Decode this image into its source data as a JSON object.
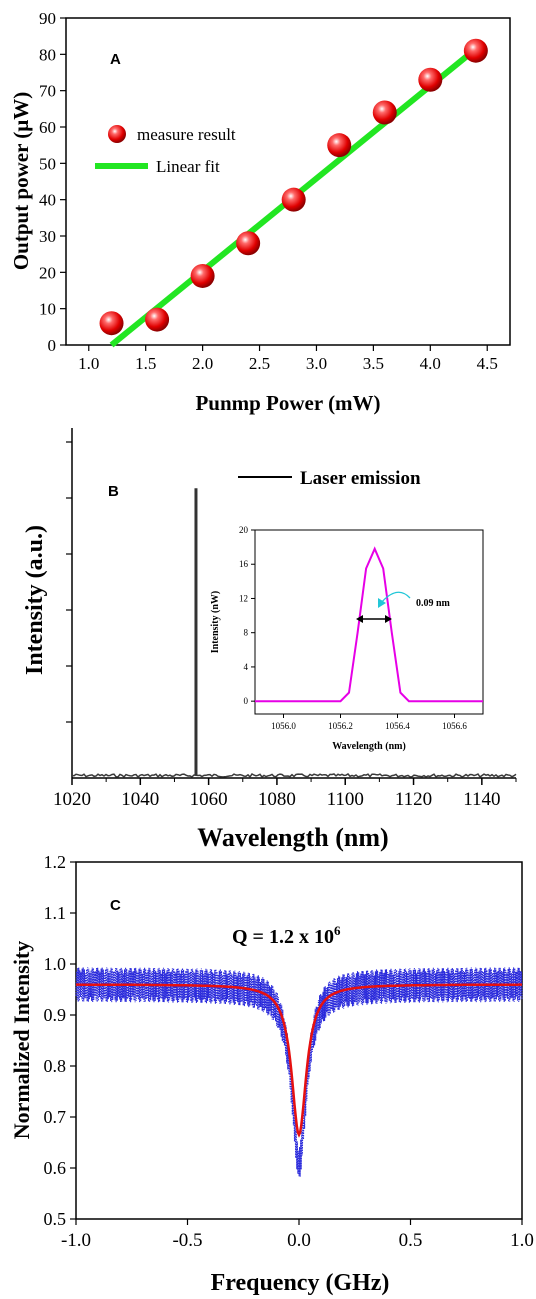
{
  "chart_data": [
    {
      "panel": "A",
      "type": "scatter",
      "xlabel": "Punmp Power (mW)",
      "ylabel": "Output power (μW)",
      "xlim": [
        0.8,
        4.7
      ],
      "ylim": [
        0,
        90
      ],
      "xticks": [
        "1.0",
        "1.5",
        "2.0",
        "2.5",
        "3.0",
        "3.5",
        "4.0",
        "4.5"
      ],
      "yticks": [
        "0",
        "10",
        "20",
        "30",
        "40",
        "50",
        "60",
        "70",
        "80",
        "90"
      ],
      "series": [
        {
          "name": "measure result",
          "kind": "marker",
          "color": "#ff1a1a",
          "x": [
            1.2,
            1.6,
            2.0,
            2.4,
            2.8,
            3.2,
            3.6,
            4.0,
            4.4
          ],
          "y": [
            6,
            7,
            19,
            28,
            40,
            55,
            64,
            73,
            81
          ]
        },
        {
          "name": "Linear fit",
          "kind": "line",
          "color": "#22e622",
          "x": [
            1.2,
            4.4
          ],
          "y": [
            0,
            81.5
          ]
        }
      ],
      "legend_position": "left-center"
    },
    {
      "panel": "B",
      "type": "line",
      "xlabel": "Wavelength (nm)",
      "ylabel": "Intensity (a.u.)",
      "xlim": [
        1020,
        1150
      ],
      "xticks": [
        "1020",
        "1040",
        "1060",
        "1080",
        "1100",
        "1120",
        "1140"
      ],
      "series": [
        {
          "name": "Laser emission",
          "color": "#333333",
          "peak_x": 1056.3,
          "peak_level": 0.9
        }
      ],
      "legend_position": "top-right",
      "inset": {
        "type": "line",
        "xlabel": "Wavelength (nm)",
        "ylabel": "Intensity (nW)",
        "xlim": [
          1055.9,
          1056.7
        ],
        "ylim": [
          -1.5,
          20
        ],
        "xticks": [
          "1056.0",
          "1056.2",
          "1056.4",
          "1056.6"
        ],
        "yticks": [
          "0",
          "4",
          "8",
          "12",
          "16",
          "20"
        ],
        "color": "#e600e6",
        "x": [
          1055.9,
          1056.2,
          1056.23,
          1056.26,
          1056.29,
          1056.32,
          1056.35,
          1056.38,
          1056.41,
          1056.44,
          1056.7
        ],
        "y": [
          0,
          0,
          1,
          8,
          15.5,
          17.8,
          15.5,
          8,
          1,
          0,
          0
        ],
        "annotation": "0.09 nm"
      }
    },
    {
      "panel": "C",
      "type": "line",
      "xlabel": "Frequency (GHz)",
      "ylabel": "Normalized Intensity",
      "xlim": [
        -1.0,
        1.0
      ],
      "ylim": [
        0.5,
        1.2
      ],
      "xticks": [
        "-1.0",
        "-0.5",
        "0.0",
        "0.5",
        "1.0"
      ],
      "yticks": [
        "0.5",
        "0.6",
        "0.7",
        "0.8",
        "0.9",
        "1.0",
        "1.1",
        "1.2"
      ],
      "annotation": {
        "prefix": "Q = 1.2 x 10",
        "exponent": "6"
      },
      "series": [
        {
          "name": "",
          "kind": "data",
          "color": "#2a2adb",
          "baseline": 0.96,
          "minimum": 0.61
        },
        {
          "name": "",
          "kind": "fit",
          "color": "#e61010",
          "baseline": 0.96,
          "minimum": 0.665,
          "center": 0.0,
          "half_width": 0.04
        }
      ]
    }
  ]
}
